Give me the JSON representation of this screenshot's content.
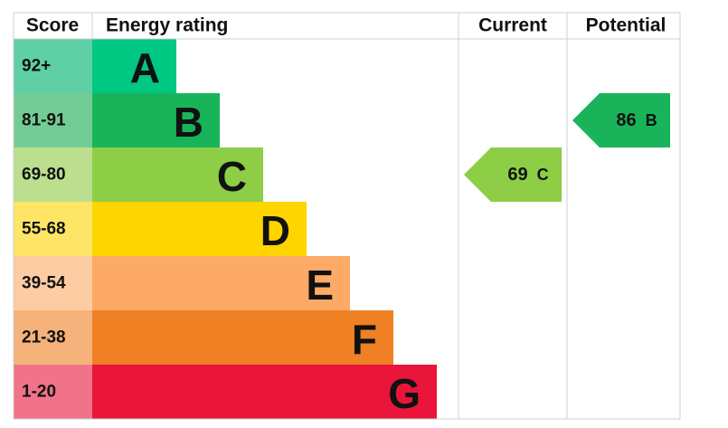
{
  "header": {
    "score": "Score",
    "rating": "Energy rating",
    "current": "Current",
    "potential": "Potential"
  },
  "bands": [
    {
      "score": "92+",
      "letter": "A",
      "color": "#00c781",
      "score_color": "#5fcfa6"
    },
    {
      "score": "81-91",
      "letter": "B",
      "color": "#19b459",
      "score_color": "#73cc95"
    },
    {
      "score": "69-80",
      "letter": "C",
      "color": "#8dce46",
      "score_color": "#bbdf8e"
    },
    {
      "score": "55-68",
      "letter": "D",
      "color": "#ffd500",
      "score_color": "#ffe566"
    },
    {
      "score": "39-54",
      "letter": "E",
      "color": "#fcaa65",
      "score_color": "#fdcca3"
    },
    {
      "score": "21-38",
      "letter": "F",
      "color": "#ef8023",
      "score_color": "#f5b27a"
    },
    {
      "score": "1-20",
      "letter": "G",
      "color": "#e9153b",
      "score_color": "#f07389"
    }
  ],
  "current": {
    "value": 69,
    "band": "C"
  },
  "potential": {
    "value": 86,
    "band": "B"
  }
}
